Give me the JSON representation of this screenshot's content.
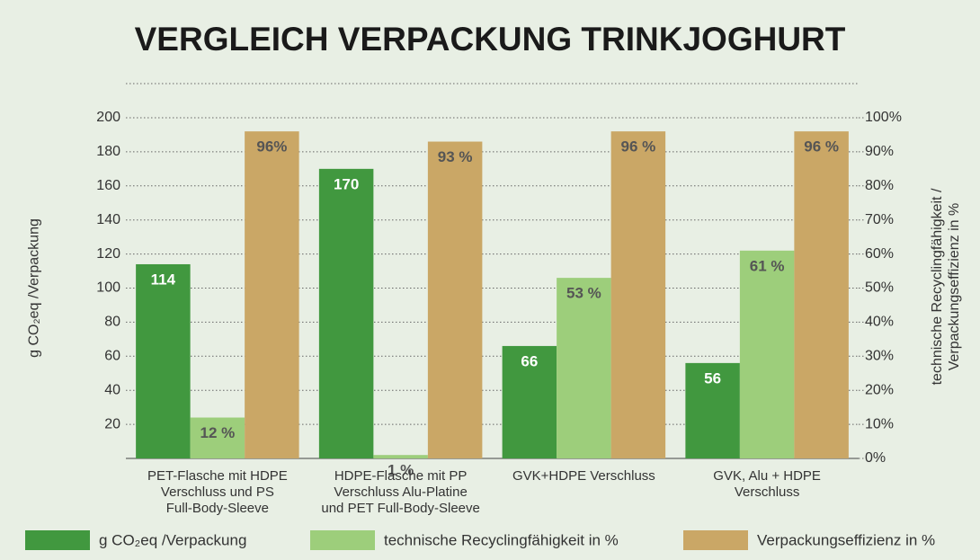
{
  "chart_data": {
    "type": "bar",
    "title": "VERGLEICH VERPACKUNG TRINKJOGHURT",
    "y_label": "g CO₂eq /Verpackung",
    "y2_label": "technische Recyclingfähigkeit / Verpackungseffizienz in %",
    "categories": [
      "PET-Flasche mit HDPE\nVerschluss und PS\nFull-Body-Sleeve",
      "HDPE-Flasche mit PP\nVerschluss Alu-Platine\nund PET Full-Body-Sleeve",
      "GVK+HDPE Verschluss",
      "GVK, Alu + HDPE\nVerschluss"
    ],
    "series": [
      {
        "name": "g CO₂eq /Verpackung",
        "color": "#41983f",
        "values": [
          114,
          170,
          66,
          56
        ],
        "value_labels": [
          "114",
          "170",
          "66",
          "56"
        ]
      },
      {
        "name": "technische Recyclingfähigkeit in %",
        "color": "#9dce7b",
        "axis": "y2",
        "values": [
          12,
          1,
          53,
          61
        ],
        "value_labels": [
          "12 %",
          "1 %",
          "53 %",
          "61 %"
        ]
      },
      {
        "name": "Verpackungseffizienz in %",
        "color": "#caa766",
        "axis": "y2",
        "values": [
          96,
          93,
          96,
          96
        ],
        "value_labels": [
          "96%",
          "93 %",
          "96 %",
          "96 %"
        ]
      }
    ],
    "ylim": [
      0,
      200
    ],
    "yticks": [
      20,
      40,
      60,
      80,
      100,
      120,
      140,
      160,
      180,
      200
    ],
    "y2lim": [
      0,
      100
    ],
    "y2ticks": [
      {
        "value": 0,
        "label": "0%"
      },
      {
        "value": 10,
        "label": "10%"
      },
      {
        "value": 20,
        "label": "20%"
      },
      {
        "value": 30,
        "label": "30%"
      },
      {
        "value": 40,
        "label": "40%"
      },
      {
        "value": 50,
        "label": "50%"
      },
      {
        "value": 60,
        "label": "60%"
      },
      {
        "value": 70,
        "label": "70%"
      },
      {
        "value": 80,
        "label": "80%"
      },
      {
        "value": 90,
        "label": "90%"
      },
      {
        "value": 100,
        "label": "100%"
      }
    ],
    "grid": true
  }
}
